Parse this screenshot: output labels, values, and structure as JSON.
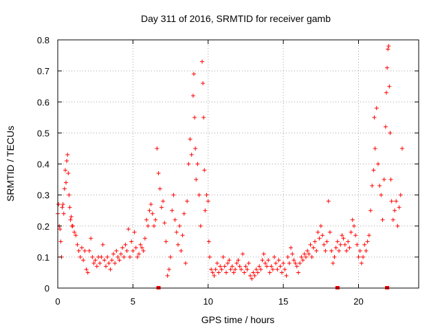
{
  "chart_data": {
    "type": "scatter",
    "title": "Day 311 of 2016, SRMTID for receiver gamb",
    "xlabel": "GPS time / hours",
    "ylabel": "SRMTID / TECUs",
    "xlim": [
      0,
      24
    ],
    "ylim": [
      0,
      0.8
    ],
    "xticks": [
      0,
      5,
      10,
      15,
      20
    ],
    "yticks": [
      0,
      0.1,
      0.2,
      0.3,
      0.4,
      0.5,
      0.6,
      0.7,
      0.8
    ],
    "xtick_labels": [
      "0",
      "5",
      "10",
      "15",
      "20"
    ],
    "ytick_labels": [
      "0",
      "0.1",
      "0.2",
      "0.3",
      "0.4",
      "0.5",
      "0.6",
      "0.7",
      "0.8"
    ],
    "grid": true,
    "marker": "+",
    "color": "#ff0000",
    "series": [
      {
        "name": "SRMTID",
        "points": [
          [
            0.0,
            0.24
          ],
          [
            0.05,
            0.27
          ],
          [
            0.1,
            0.2
          ],
          [
            0.15,
            0.19
          ],
          [
            0.2,
            0.15
          ],
          [
            0.25,
            0.1
          ],
          [
            0.3,
            0.26
          ],
          [
            0.35,
            0.27
          ],
          [
            0.4,
            0.24
          ],
          [
            0.45,
            0.32
          ],
          [
            0.5,
            0.38
          ],
          [
            0.55,
            0.34
          ],
          [
            0.6,
            0.41
          ],
          [
            0.65,
            0.43
          ],
          [
            0.7,
            0.37
          ],
          [
            0.75,
            0.3
          ],
          [
            0.8,
            0.26
          ],
          [
            0.85,
            0.22
          ],
          [
            0.9,
            0.23
          ],
          [
            0.95,
            0.2
          ],
          [
            1.0,
            0.2
          ],
          [
            1.1,
            0.18
          ],
          [
            1.2,
            0.17
          ],
          [
            1.3,
            0.14
          ],
          [
            1.4,
            0.12
          ],
          [
            1.5,
            0.1
          ],
          [
            1.6,
            0.13
          ],
          [
            1.7,
            0.09
          ],
          [
            1.8,
            0.12
          ],
          [
            1.9,
            0.06
          ],
          [
            2.0,
            0.05
          ],
          [
            2.1,
            0.12
          ],
          [
            2.2,
            0.16
          ],
          [
            2.3,
            0.1
          ],
          [
            2.4,
            0.08
          ],
          [
            2.5,
            0.09
          ],
          [
            2.6,
            0.07
          ],
          [
            2.7,
            0.1
          ],
          [
            2.8,
            0.08
          ],
          [
            2.9,
            0.1
          ],
          [
            3.0,
            0.14
          ],
          [
            3.1,
            0.09
          ],
          [
            3.2,
            0.07
          ],
          [
            3.3,
            0.1
          ],
          [
            3.4,
            0.08
          ],
          [
            3.5,
            0.06
          ],
          [
            3.6,
            0.09
          ],
          [
            3.7,
            0.11
          ],
          [
            3.8,
            0.08
          ],
          [
            3.9,
            0.12
          ],
          [
            4.0,
            0.1
          ],
          [
            4.1,
            0.09
          ],
          [
            4.2,
            0.11
          ],
          [
            4.3,
            0.13
          ],
          [
            4.4,
            0.1
          ],
          [
            4.5,
            0.14
          ],
          [
            4.6,
            0.12
          ],
          [
            4.7,
            0.19
          ],
          [
            4.8,
            0.1
          ],
          [
            4.9,
            0.15
          ],
          [
            5.0,
            0.12
          ],
          [
            5.1,
            0.18
          ],
          [
            5.2,
            0.13
          ],
          [
            5.3,
            0.1
          ],
          [
            5.4,
            0.11
          ],
          [
            5.5,
            0.14
          ],
          [
            5.6,
            0.13
          ],
          [
            5.7,
            0.12
          ],
          [
            5.8,
            0.16
          ],
          [
            5.9,
            0.22
          ],
          [
            6.0,
            0.2
          ],
          [
            6.1,
            0.25
          ],
          [
            6.2,
            0.27
          ],
          [
            6.3,
            0.24
          ],
          [
            6.4,
            0.2
          ],
          [
            6.5,
            0.22
          ],
          [
            6.6,
            0.45
          ],
          [
            6.7,
            0.37
          ],
          [
            6.8,
            0.32
          ],
          [
            6.9,
            0.26
          ],
          [
            7.0,
            0.28
          ],
          [
            7.1,
            0.21
          ],
          [
            7.2,
            0.15
          ],
          [
            7.3,
            0.04
          ],
          [
            7.4,
            0.06
          ],
          [
            7.5,
            0.1
          ],
          [
            7.6,
            0.25
          ],
          [
            7.7,
            0.3
          ],
          [
            7.8,
            0.22
          ],
          [
            7.9,
            0.18
          ],
          [
            8.0,
            0.14
          ],
          [
            8.1,
            0.2
          ],
          [
            8.2,
            0.12
          ],
          [
            8.3,
            0.17
          ],
          [
            8.4,
            0.24
          ],
          [
            8.5,
            0.08
          ],
          [
            8.6,
            0.28
          ],
          [
            8.7,
            0.4
          ],
          [
            8.8,
            0.48
          ],
          [
            8.9,
            0.43
          ],
          [
            9.0,
            0.62
          ],
          [
            9.05,
            0.69
          ],
          [
            9.1,
            0.55
          ],
          [
            9.15,
            0.45
          ],
          [
            9.2,
            0.35
          ],
          [
            9.3,
            0.4
          ],
          [
            9.4,
            0.3
          ],
          [
            9.5,
            0.2
          ],
          [
            9.6,
            0.73
          ],
          [
            9.65,
            0.66
          ],
          [
            9.7,
            0.55
          ],
          [
            9.75,
            0.38
          ],
          [
            9.8,
            0.25
          ],
          [
            9.9,
            0.3
          ],
          [
            10.0,
            0.28
          ],
          [
            10.05,
            0.15
          ],
          [
            10.1,
            0.1
          ],
          [
            10.2,
            0.06
          ],
          [
            10.3,
            0.05
          ],
          [
            10.4,
            0.04
          ],
          [
            10.5,
            0.06
          ],
          [
            10.6,
            0.08
          ],
          [
            10.7,
            0.05
          ],
          [
            10.8,
            0.07
          ],
          [
            10.9,
            0.06
          ],
          [
            11.0,
            0.1
          ],
          [
            11.1,
            0.07
          ],
          [
            11.2,
            0.05
          ],
          [
            11.3,
            0.08
          ],
          [
            11.4,
            0.09
          ],
          [
            11.5,
            0.06
          ],
          [
            11.6,
            0.07
          ],
          [
            11.7,
            0.05
          ],
          [
            11.8,
            0.06
          ],
          [
            11.9,
            0.08
          ],
          [
            12.0,
            0.09
          ],
          [
            12.1,
            0.07
          ],
          [
            12.2,
            0.06
          ],
          [
            12.3,
            0.11
          ],
          [
            12.4,
            0.05
          ],
          [
            12.5,
            0.07
          ],
          [
            12.6,
            0.06
          ],
          [
            12.7,
            0.08
          ],
          [
            12.8,
            0.04
          ],
          [
            12.9,
            0.03
          ],
          [
            13.0,
            0.05
          ],
          [
            13.1,
            0.04
          ],
          [
            13.2,
            0.06
          ],
          [
            13.3,
            0.05
          ],
          [
            13.4,
            0.07
          ],
          [
            13.5,
            0.06
          ],
          [
            13.6,
            0.09
          ],
          [
            13.7,
            0.11
          ],
          [
            13.8,
            0.08
          ],
          [
            13.9,
            0.07
          ],
          [
            14.0,
            0.09
          ],
          [
            14.1,
            0.05
          ],
          [
            14.2,
            0.07
          ],
          [
            14.3,
            0.06
          ],
          [
            14.4,
            0.1
          ],
          [
            14.5,
            0.08
          ],
          [
            14.6,
            0.06
          ],
          [
            14.7,
            0.09
          ],
          [
            14.8,
            0.07
          ],
          [
            14.9,
            0.05
          ],
          [
            15.0,
            0.08
          ],
          [
            15.1,
            0.06
          ],
          [
            15.2,
            0.04
          ],
          [
            15.3,
            0.1
          ],
          [
            15.4,
            0.08
          ],
          [
            15.5,
            0.13
          ],
          [
            15.6,
            0.11
          ],
          [
            15.7,
            0.09
          ],
          [
            15.8,
            0.08
          ],
          [
            15.9,
            0.07
          ],
          [
            16.0,
            0.05
          ],
          [
            16.1,
            0.08
          ],
          [
            16.2,
            0.1
          ],
          [
            16.3,
            0.09
          ],
          [
            16.4,
            0.11
          ],
          [
            16.5,
            0.1
          ],
          [
            16.6,
            0.12
          ],
          [
            16.7,
            0.11
          ],
          [
            16.8,
            0.14
          ],
          [
            16.9,
            0.1
          ],
          [
            17.0,
            0.13
          ],
          [
            17.1,
            0.15
          ],
          [
            17.2,
            0.12
          ],
          [
            17.3,
            0.18
          ],
          [
            17.4,
            0.16
          ],
          [
            17.5,
            0.2
          ],
          [
            17.6,
            0.17
          ],
          [
            17.7,
            0.14
          ],
          [
            17.8,
            0.12
          ],
          [
            17.9,
            0.15
          ],
          [
            18.0,
            0.28
          ],
          [
            18.1,
            0.18
          ],
          [
            18.2,
            0.12
          ],
          [
            18.3,
            0.08
          ],
          [
            18.4,
            0.1
          ],
          [
            18.5,
            0.13
          ],
          [
            18.6,
            0.15
          ],
          [
            18.7,
            0.12
          ],
          [
            18.8,
            0.14
          ],
          [
            18.9,
            0.17
          ],
          [
            19.0,
            0.16
          ],
          [
            19.1,
            0.14
          ],
          [
            19.2,
            0.12
          ],
          [
            19.3,
            0.15
          ],
          [
            19.4,
            0.13
          ],
          [
            19.5,
            0.18
          ],
          [
            19.6,
            0.22
          ],
          [
            19.7,
            0.2
          ],
          [
            19.8,
            0.17
          ],
          [
            19.9,
            0.14
          ],
          [
            20.0,
            0.1
          ],
          [
            20.1,
            0.12
          ],
          [
            20.2,
            0.08
          ],
          [
            20.3,
            0.1
          ],
          [
            20.4,
            0.14
          ],
          [
            20.5,
            0.12
          ],
          [
            20.6,
            0.15
          ],
          [
            20.7,
            0.17
          ],
          [
            20.8,
            0.25
          ],
          [
            20.9,
            0.33
          ],
          [
            21.0,
            0.38
          ],
          [
            21.05,
            0.55
          ],
          [
            21.1,
            0.45
          ],
          [
            21.2,
            0.58
          ],
          [
            21.3,
            0.4
          ],
          [
            21.4,
            0.33
          ],
          [
            21.5,
            0.3
          ],
          [
            21.6,
            0.22
          ],
          [
            21.7,
            0.35
          ],
          [
            21.8,
            0.52
          ],
          [
            21.85,
            0.63
          ],
          [
            21.9,
            0.71
          ],
          [
            21.95,
            0.77
          ],
          [
            22.0,
            0.78
          ],
          [
            22.05,
            0.65
          ],
          [
            22.1,
            0.5
          ],
          [
            22.15,
            0.35
          ],
          [
            22.2,
            0.28
          ],
          [
            22.3,
            0.22
          ],
          [
            22.4,
            0.25
          ],
          [
            22.5,
            0.28
          ],
          [
            22.6,
            0.2
          ],
          [
            22.7,
            0.26
          ],
          [
            22.8,
            0.3
          ],
          [
            22.9,
            0.45
          ]
        ]
      }
    ],
    "gap_markers_x": [
      6.7,
      18.6,
      21.9
    ]
  }
}
